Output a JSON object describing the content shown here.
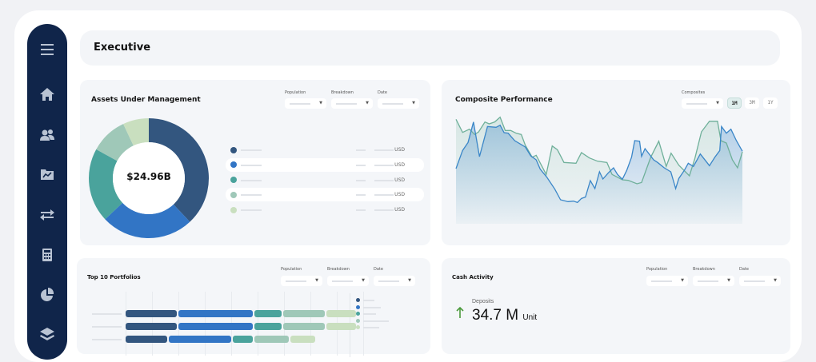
{
  "header": {
    "title": "Executive"
  },
  "sidebar": {
    "items": [
      {
        "icon": "menu-icon"
      },
      {
        "icon": "home-icon"
      },
      {
        "icon": "users-icon"
      },
      {
        "icon": "chart-folder-icon"
      },
      {
        "icon": "transfer-icon"
      },
      {
        "icon": "calculator-icon"
      },
      {
        "icon": "pie-chart-icon"
      },
      {
        "icon": "layers-icon"
      }
    ]
  },
  "aum": {
    "title": "Assets Under Management",
    "filters": [
      "Population",
      "Breakdown",
      "Date"
    ],
    "total": "$24.96B",
    "legend_unit": "USD",
    "colors": [
      "#33567f",
      "#3275c5",
      "#4aa39c",
      "#9fc8b8",
      "#c9dfbf"
    ]
  },
  "composite": {
    "title": "Composite Performance",
    "filter_label": "Composites",
    "ranges": [
      "1M",
      "3M",
      "1Y"
    ],
    "active_range": "1M"
  },
  "top10": {
    "title": "Top 10 Portfolios",
    "filters": [
      "Population",
      "Breakdown",
      "Date"
    ]
  },
  "cash": {
    "title": "Cash Activity",
    "filters": [
      "Population",
      "Breakdown",
      "Date"
    ],
    "metric_label": "Deposits",
    "metric_value": "34.7 M",
    "metric_unit": "Unit",
    "trend": "up",
    "trend_color": "#4b9a3c"
  },
  "chart_data": [
    {
      "type": "pie",
      "title": "Assets Under Management",
      "center_label": "$24.96B",
      "values": [
        38,
        25,
        20,
        10,
        7
      ],
      "colors": [
        "#33567f",
        "#3275c5",
        "#4aa39c",
        "#9fc8b8",
        "#c9dfbf"
      ]
    },
    {
      "type": "line",
      "title": "Composite Performance",
      "series": [
        {
          "color": "#3a86c8",
          "points": [
            [
              0,
              53.4
            ],
            [
              2.3,
              67
            ],
            [
              4.2,
              73
            ],
            [
              6.1,
              88.4
            ],
            [
              8.2,
              62.4
            ],
            [
              11,
              85
            ],
            [
              14,
              84.4
            ],
            [
              15.4,
              86
            ],
            [
              16.8,
              80.4
            ],
            [
              18.2,
              80
            ],
            [
              20.5,
              74.4
            ],
            [
              24.2,
              69.6
            ],
            [
              26.1,
              63
            ],
            [
              28,
              60
            ],
            [
              29.4,
              53
            ],
            [
              31.7,
              47
            ],
            [
              34.5,
              38
            ],
            [
              36.5,
              30
            ],
            [
              39.1,
              28.6
            ],
            [
              41,
              29
            ],
            [
              42.4,
              28
            ],
            [
              43.8,
              31
            ],
            [
              45.2,
              32
            ],
            [
              46.9,
              44.4
            ],
            [
              48.5,
              38.4
            ],
            [
              50.1,
              51
            ],
            [
              51.3,
              45.6
            ],
            [
              53.1,
              50
            ],
            [
              55,
              54
            ],
            [
              56.4,
              49
            ],
            [
              58.1,
              45.4
            ],
            [
              59.6,
              52
            ],
            [
              61.3,
              62
            ],
            [
              62.4,
              74.4
            ],
            [
              64.1,
              74
            ],
            [
              64.8,
              62.6
            ],
            [
              66,
              68.4
            ],
            [
              69,
              60
            ],
            [
              70.4,
              58
            ],
            [
              72.7,
              54
            ],
            [
              75,
              51
            ],
            [
              76.7,
              38.4
            ],
            [
              77.8,
              46
            ],
            [
              79.7,
              52
            ],
            [
              81.1,
              57.4
            ],
            [
              82.9,
              55
            ],
            [
              85.3,
              64.4
            ],
            [
              88.5,
              55.6
            ],
            [
              90.4,
              62
            ],
            [
              92.1,
              67
            ],
            [
              92.7,
              85
            ],
            [
              94.4,
              80
            ],
            [
              96,
              83
            ],
            [
              97.9,
              74.4
            ],
            [
              100,
              66.4
            ]
          ]
        },
        {
          "color": "#6fb09a",
          "points": [
            [
              0,
              90.4
            ],
            [
              2.3,
              80.6
            ],
            [
              4.7,
              83
            ],
            [
              6.5,
              79
            ],
            [
              7.9,
              81
            ],
            [
              10.1,
              88.4
            ],
            [
              11.6,
              87
            ],
            [
              13.5,
              88.4
            ],
            [
              15.4,
              92
            ],
            [
              17.2,
              82
            ],
            [
              19.1,
              82
            ],
            [
              21,
              80
            ],
            [
              22.8,
              79
            ],
            [
              24.2,
              71
            ],
            [
              26.6,
              62
            ],
            [
              28,
              63.4
            ],
            [
              29.8,
              56
            ],
            [
              31.5,
              49
            ],
            [
              33.6,
              70.4
            ],
            [
              35.4,
              67.6
            ],
            [
              37.7,
              58
            ],
            [
              41.9,
              57.4
            ],
            [
              43.8,
              65.4
            ],
            [
              46.6,
              61.4
            ],
            [
              49.4,
              59
            ],
            [
              52.7,
              58
            ],
            [
              54.5,
              49
            ],
            [
              58.1,
              45
            ],
            [
              60.1,
              44.6
            ],
            [
              63.2,
              42
            ],
            [
              64.8,
              43
            ],
            [
              68,
              62
            ],
            [
              70.8,
              74
            ],
            [
              73.4,
              55
            ],
            [
              75.1,
              65
            ],
            [
              77.8,
              56
            ],
            [
              81.5,
              48
            ],
            [
              83.4,
              61
            ],
            [
              85.7,
              81
            ],
            [
              88.5,
              89
            ],
            [
              91.3,
              89
            ],
            [
              92.5,
              74.4
            ],
            [
              94.4,
              72.6
            ],
            [
              96.5,
              60
            ],
            [
              98.3,
              54
            ],
            [
              100,
              66
            ]
          ]
        }
      ]
    },
    {
      "type": "bar",
      "title": "Top 10 Portfolios",
      "orientation": "horizontal",
      "stacked": true,
      "colors": [
        "#33567f",
        "#3275c5",
        "#4aa39c",
        "#9fc8b8",
        "#c9dfbf"
      ],
      "rows": [
        [
          22,
          32,
          12,
          18,
          13
        ],
        [
          22,
          32,
          12,
          18,
          13
        ],
        [
          18,
          27,
          9,
          15,
          11
        ]
      ]
    }
  ]
}
